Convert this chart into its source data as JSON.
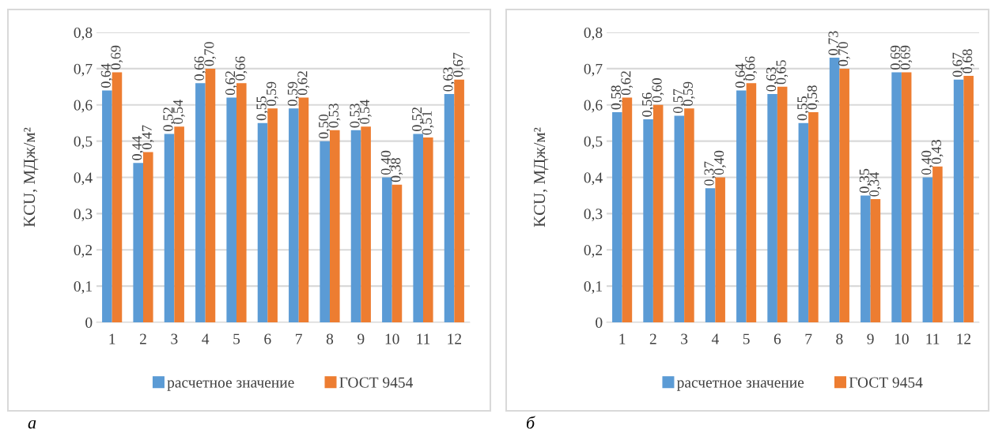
{
  "chart_data": [
    {
      "type": "bar",
      "ylabel": "KCU, МДж/м²",
      "annotations": [
        "а"
      ],
      "categories": [
        "1",
        "2",
        "3",
        "4",
        "5",
        "6",
        "7",
        "8",
        "9",
        "10",
        "11",
        "12"
      ],
      "series": [
        {
          "name": "расчетное значение",
          "color": "#5b9bd5",
          "values": [
            0.64,
            0.44,
            0.52,
            0.66,
            0.62,
            0.55,
            0.59,
            0.5,
            0.53,
            0.4,
            0.52,
            0.63
          ],
          "value_labels": [
            "0,64",
            "0,44",
            "0,52",
            "0,66",
            "0,62",
            "0,55",
            "0,59",
            "0,50",
            "0,53",
            "0,40",
            "0,52",
            "0,63"
          ]
        },
        {
          "name": "ГОСТ 9454",
          "color": "#ed7d31",
          "values": [
            0.69,
            0.47,
            0.54,
            0.7,
            0.66,
            0.59,
            0.62,
            0.53,
            0.54,
            0.38,
            0.51,
            0.67
          ],
          "value_labels": [
            "0,69",
            "0,47",
            "0,54",
            "0,70",
            "0,66",
            "0,59",
            "0,62",
            "0,53",
            "0,54",
            "0,38",
            "0,51",
            "0,67"
          ]
        }
      ],
      "ylim": [
        0,
        0.8
      ],
      "yticks": [
        0,
        {
          "value": 0.1,
          "label": "0,1"
        },
        {
          "value": 0.2,
          "label": "0,2"
        },
        {
          "value": 0.3,
          "label": "0,3"
        },
        {
          "value": 0.4,
          "label": "0,4"
        },
        {
          "value": 0.5,
          "label": "0,5"
        },
        {
          "value": 0.6,
          "label": "0,6"
        },
        {
          "value": 0.7,
          "label": "0,7"
        },
        {
          "value": 0.8,
          "label": "0,8"
        }
      ],
      "grid": "y",
      "legend": "bottom"
    },
    {
      "type": "bar",
      "ylabel": "KCU, МДж/м²",
      "annotations": [
        "б"
      ],
      "categories": [
        "1",
        "2",
        "3",
        "4",
        "5",
        "6",
        "7",
        "8",
        "9",
        "10",
        "11",
        "12"
      ],
      "series": [
        {
          "name": "расчетное значение",
          "color": "#5b9bd5",
          "values": [
            0.58,
            0.56,
            0.57,
            0.37,
            0.64,
            0.63,
            0.55,
            0.73,
            0.35,
            0.69,
            0.4,
            0.67
          ],
          "value_labels": [
            "0,58",
            "0,56",
            "0,57",
            "0,37",
            "0,64",
            "0,63",
            "0,55",
            "0,73",
            "0,35",
            "0,69",
            "0,40",
            "0,67"
          ]
        },
        {
          "name": "ГОСТ 9454",
          "color": "#ed7d31",
          "values": [
            0.62,
            0.6,
            0.59,
            0.4,
            0.66,
            0.65,
            0.58,
            0.7,
            0.34,
            0.69,
            0.43,
            0.68
          ],
          "value_labels": [
            "0,62",
            "0,60",
            "0,59",
            "0,40",
            "0,66",
            "0,65",
            "0,58",
            "0,70",
            "0,34",
            "0,69",
            "0,43",
            "0,68"
          ]
        }
      ],
      "ylim": [
        0,
        0.8
      ],
      "yticks": [
        0,
        {
          "value": 0.1,
          "label": "0,1"
        },
        {
          "value": 0.2,
          "label": "0,2"
        },
        {
          "value": 0.3,
          "label": "0,3"
        },
        {
          "value": 0.4,
          "label": "0,4"
        },
        {
          "value": 0.5,
          "label": "0,5"
        },
        {
          "value": 0.6,
          "label": "0,6"
        },
        {
          "value": 0.7,
          "label": "0,7"
        },
        {
          "value": 0.8,
          "label": "0,8"
        }
      ],
      "grid": "y",
      "legend": "bottom"
    }
  ]
}
